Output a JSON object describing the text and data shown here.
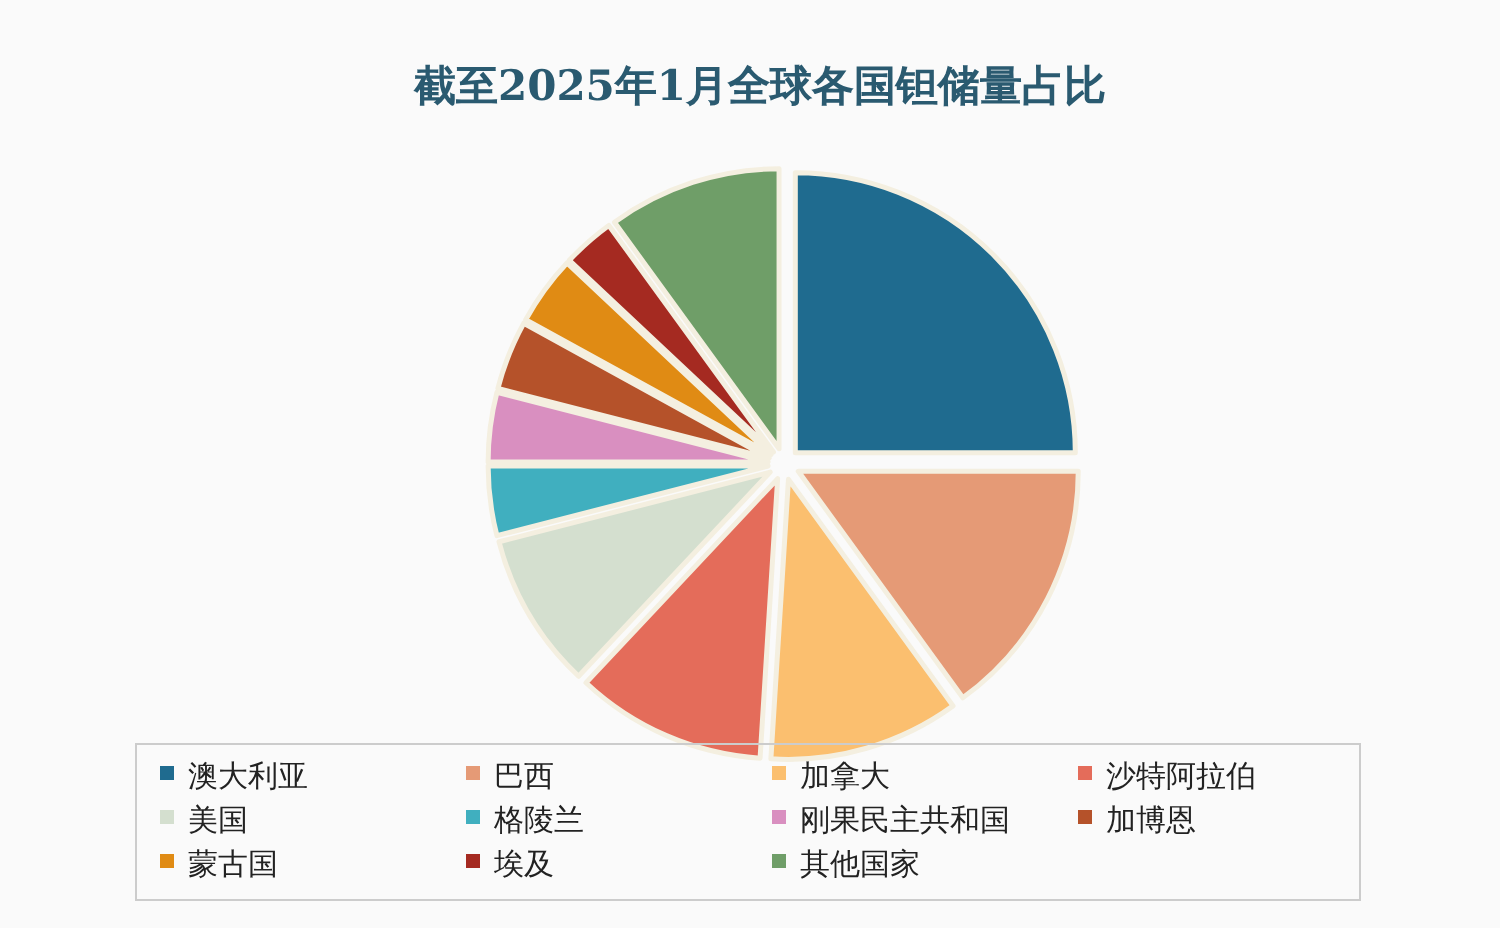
{
  "chart_data": {
    "type": "pie",
    "title": "截至2025年1月全球各国钽储量占比",
    "categories": [
      "澳大利亚",
      "巴西",
      "加拿大",
      "沙特阿拉伯",
      "美国",
      "格陵兰",
      "刚果民主共和国",
      "加博恩",
      "蒙古国",
      "埃及",
      "其他国家"
    ],
    "values": [
      25,
      15,
      11,
      11,
      9,
      4,
      4,
      4,
      4,
      3,
      10
    ],
    "colors": [
      "#1f6b8f",
      "#e59a76",
      "#fbbf6f",
      "#e46c5a",
      "#d4dfcf",
      "#40afbf",
      "#d98fc0",
      "#b5522a",
      "#e08b14",
      "#a52a21",
      "#6f9e68"
    ],
    "legend": "bottom"
  }
}
